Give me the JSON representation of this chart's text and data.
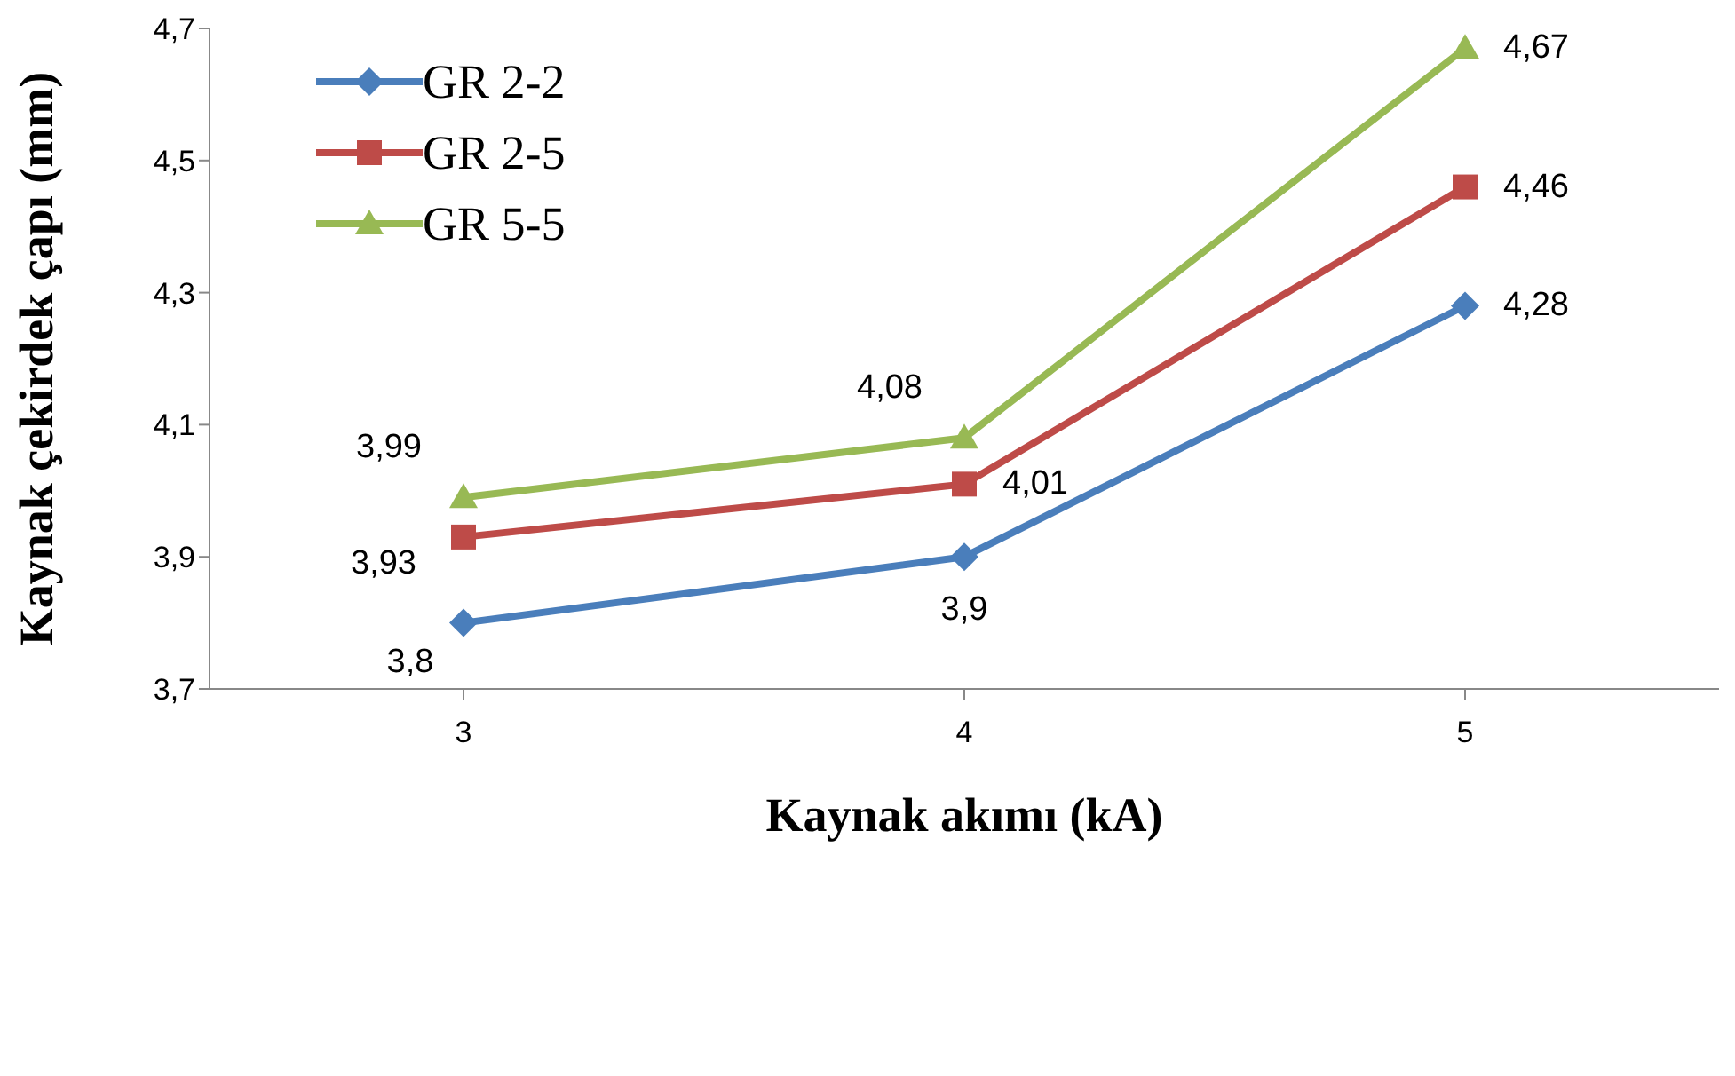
{
  "chart_data": {
    "type": "line",
    "xlabel": "Kaynak akımı (kA)",
    "ylabel": "Kaynak çekirdek çapı (mm)",
    "categories": [
      "3",
      "4",
      "5"
    ],
    "ylim": [
      3.7,
      4.7
    ],
    "yticks": [
      {
        "value": 3.7,
        "label": "3,7"
      },
      {
        "value": 3.9,
        "label": "3,9"
      },
      {
        "value": 4.1,
        "label": "4,1"
      },
      {
        "value": 4.3,
        "label": "4,3"
      },
      {
        "value": 4.5,
        "label": "4,5"
      },
      {
        "value": 4.7,
        "label": "4,7"
      }
    ],
    "series": [
      {
        "name": "GR 2-2",
        "color": "#4a7ebb",
        "marker": "diamond",
        "values": [
          3.8,
          3.9,
          4.28
        ],
        "value_labels": [
          "3,8",
          "3,9",
          "4,28"
        ]
      },
      {
        "name": "GR 2-5",
        "color": "#be4b48",
        "marker": "square",
        "values": [
          3.93,
          4.01,
          4.46
        ],
        "value_labels": [
          "3,93",
          "4,01",
          "4,46"
        ]
      },
      {
        "name": "GR 5-5",
        "color": "#98b954",
        "marker": "triangle",
        "values": [
          3.99,
          4.08,
          4.67
        ],
        "value_labels": [
          "3,99",
          "4,08",
          "4,67"
        ]
      }
    ],
    "legend": "top left",
    "grid": false,
    "line_style": "solid"
  }
}
